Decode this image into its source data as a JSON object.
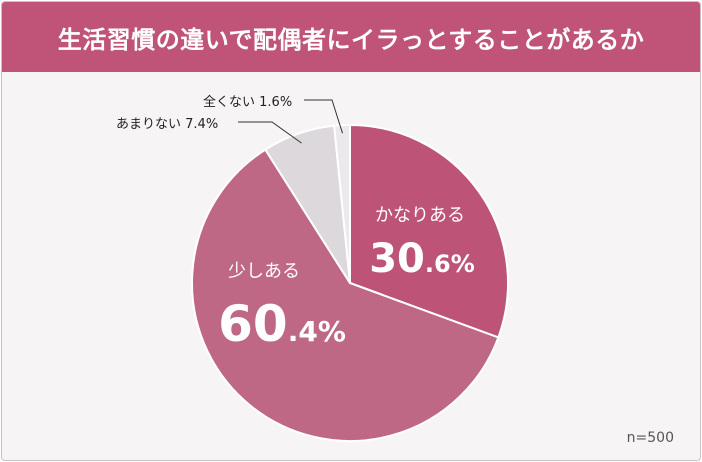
{
  "title": "生活習慣の違いで配偶者にイラっとすることがあるか",
  "sample_note": "n=500",
  "chart_data": {
    "type": "pie",
    "start": "12 o'clock",
    "direction": "clockwise",
    "slices": [
      {
        "label": "かなりある",
        "value": 30.6,
        "display": "30.6%",
        "big": "30",
        "small": ".6%",
        "color": "#bd5478"
      },
      {
        "label": "少しある",
        "value": 60.4,
        "display": "60.4%",
        "big": "60",
        "small": ".4%",
        "color": "#bf6886"
      },
      {
        "label": "あまりない",
        "value": 7.4,
        "display": "7.4%",
        "color": "#dcd8dc"
      },
      {
        "label": "全くない",
        "value": 1.6,
        "display": "1.6%",
        "color": "#ece8eb"
      }
    ]
  }
}
